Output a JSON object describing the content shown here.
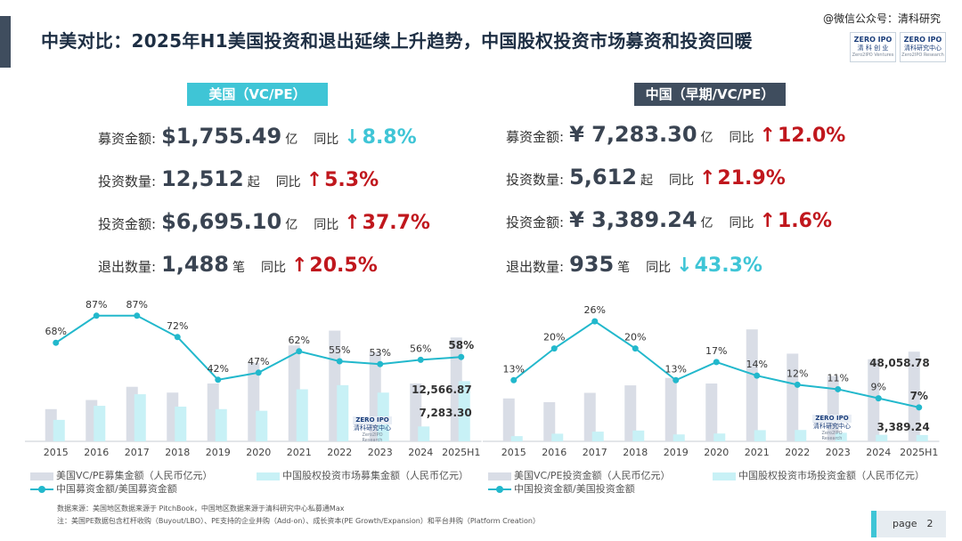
{
  "title": "中美对比：2025年H1美国投资和退出延续上升趋势，中国股权投资市场募资和投资回暖",
  "watermark": "@微信公众号：清科研究",
  "logos": [
    {
      "line1": "ZERO IPO",
      "line2": "清 科 创 业",
      "line3": "Zero2IPO Ventures"
    },
    {
      "line1": "ZERO IPO",
      "line2": "清科研究中心",
      "line3": "Zero2IPO Research"
    }
  ],
  "chart_logo": {
    "line1": "ZERO IPO",
    "line2": "清科研究中心",
    "line3": "Zero2IPO Research"
  },
  "us": {
    "tag": "美国（VC/PE）",
    "yoy_label": "同比",
    "kpis": [
      {
        "label": "募资金额:",
        "value": "$1,755.49",
        "unit": "亿",
        "direction": "down",
        "arrow": "↓",
        "change": "8.8%"
      },
      {
        "label": "投资数量:",
        "value": "12,512",
        "unit": "起",
        "direction": "up",
        "arrow": "↑",
        "change": "5.3%"
      },
      {
        "label": "投资金额:",
        "value": "$6,695.10",
        "unit": "亿",
        "direction": "up",
        "arrow": "↑",
        "change": "37.7%"
      },
      {
        "label": "退出数量:",
        "value": "1,488",
        "unit": "笔",
        "direction": "up",
        "arrow": "↑",
        "change": "20.5%"
      }
    ]
  },
  "cn": {
    "tag": "中国（早期/VC/PE）",
    "yoy_label": "同比",
    "kpis": [
      {
        "label": "募资金额:",
        "value": "¥ 7,283.30",
        "unit": "亿",
        "direction": "up",
        "arrow": "↑",
        "change": "12.0%"
      },
      {
        "label": "投资数量:",
        "value": "5,612",
        "unit": "起",
        "direction": "up",
        "arrow": "↑",
        "change": "21.9%"
      },
      {
        "label": "投资金额:",
        "value": "¥ 3,389.24",
        "unit": "亿",
        "direction": "up",
        "arrow": "↑",
        "change": "1.6%"
      },
      {
        "label": "退出数量:",
        "value": "935",
        "unit": "笔",
        "direction": "down",
        "arrow": "↓",
        "change": "43.3%"
      }
    ]
  },
  "colors": {
    "us_bar": "#d9dde6",
    "cn_bar": "#c8f1f6",
    "line": "#22b8cc",
    "up": "#c0171d",
    "down": "#3fc5d6",
    "tag_us": "#3fc5d6",
    "tag_cn": "#3f4d5e"
  },
  "chart_data": [
    {
      "type": "bar",
      "categories": [
        "2015",
        "2016",
        "2017",
        "2018",
        "2019",
        "2020",
        "2021",
        "2022",
        "2023",
        "2024",
        "2025H1"
      ],
      "series": [
        {
          "name": "美国VC/PE募集金额（人民币亿元）",
          "values": [
            3900,
            5000,
            6600,
            5900,
            7000,
            9500,
            11600,
            13400,
            10800,
            7000,
            12566.87
          ]
        },
        {
          "name": "中国股权投资市场募集金额（人民币亿元）",
          "values": [
            2600,
            4300,
            5700,
            4200,
            3900,
            3700,
            6300,
            6800,
            5900,
            1800,
            7283.3
          ]
        },
        {
          "name": "中国募资金额/美国募资金额",
          "type": "line",
          "values": [
            68,
            87,
            87,
            72,
            42,
            47,
            62,
            55,
            53,
            56,
            58
          ]
        }
      ],
      "data_labels": [
        "12,566.87",
        "7,283.30"
      ],
      "line_labels": [
        "68%",
        "87%",
        "87%",
        "72%",
        "42%",
        "47%",
        "62%",
        "55%",
        "53%",
        "56%",
        "58%"
      ]
    },
    {
      "type": "bar",
      "categories": [
        "2015",
        "2016",
        "2017",
        "2018",
        "2019",
        "2020",
        "2021",
        "2022",
        "2023",
        "2024",
        "2025H1"
      ],
      "series": [
        {
          "name": "美国VC/PE投资金额（人民币亿元）",
          "values": [
            23000,
            21000,
            26000,
            30000,
            34000,
            31000,
            60000,
            47000,
            35000,
            44000,
            48058.78
          ]
        },
        {
          "name": "中国股权投资市场投资金额（人民币亿元）",
          "values": [
            2800,
            4100,
            5200,
            5800,
            3700,
            4200,
            6000,
            6100,
            4600,
            3500,
            3389.24
          ]
        },
        {
          "name": "中国投资金额/美国投资金额",
          "type": "line",
          "values": [
            13,
            20,
            26,
            20,
            13,
            17,
            14,
            12,
            11,
            9,
            7
          ]
        }
      ],
      "data_labels": [
        "48,058.78",
        "3,389.24"
      ],
      "line_labels": [
        "13%",
        "20%",
        "26%",
        "20%",
        "13%",
        "17%",
        "14%",
        "12%",
        "11%",
        "9%",
        "7%"
      ]
    }
  ],
  "footnotes": [
    "数据来源：美国地区数据来源于 PitchBook，中国地区数据来源于清科研究中心私募通Max",
    "注：美国PE数据包含杠杆收购（Buyout/LBO）、PE支持的企业并购（Add-on）、成长资本(PE Growth/Expansion）和平台并购（Platform Creation）"
  ],
  "page": "page　2"
}
